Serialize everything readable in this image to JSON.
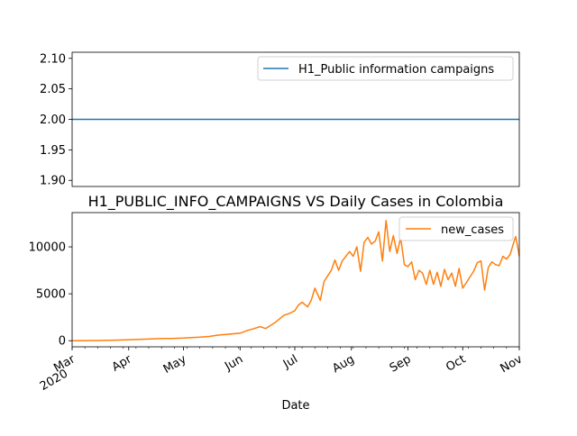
{
  "chart_data": [
    {
      "type": "line",
      "title": "",
      "xlabel": "",
      "ylabel": "",
      "ylim": [
        1.89,
        2.11
      ],
      "yticks": [
        1.9,
        1.95,
        2.0,
        2.05,
        2.1
      ],
      "ytick_labels": [
        "1.90",
        "1.95",
        "2.00",
        "2.05",
        "2.10"
      ],
      "legend_position": "top-right",
      "series": [
        {
          "name": "H1_Public information campaigns",
          "color": "#1f77b4",
          "x": [
            "2020-03-01",
            "2020-11-01"
          ],
          "values": [
            2,
            2
          ]
        }
      ]
    },
    {
      "type": "line",
      "title": "H1_PUBLIC_INFO_CAMPAIGNS VS Daily Cases in Colombia",
      "xlabel": "Date",
      "ylabel": "",
      "ylim": [
        -650,
        13650
      ],
      "yticks": [
        0,
        5000,
        10000
      ],
      "ytick_labels": [
        "0",
        "5000",
        "10000"
      ],
      "xlim": [
        "2020-03-01",
        "2020-11-01"
      ],
      "xticks": [
        {
          "date": "2020-03-01",
          "label": "Mar",
          "year": "2020"
        },
        {
          "date": "2020-04-01",
          "label": "Apr"
        },
        {
          "date": "2020-05-01",
          "label": "May"
        },
        {
          "date": "2020-06-01",
          "label": "Jun"
        },
        {
          "date": "2020-07-01",
          "label": "Jul"
        },
        {
          "date": "2020-08-01",
          "label": "Aug"
        },
        {
          "date": "2020-09-01",
          "label": "Sep"
        },
        {
          "date": "2020-10-01",
          "label": "Oct"
        },
        {
          "date": "2020-11-01",
          "label": "Nov"
        }
      ],
      "legend_position": "top-right",
      "series": [
        {
          "name": "new_cases",
          "color": "#ff7f0e",
          "x": [
            "2020-03-01",
            "2020-03-15",
            "2020-03-25",
            "2020-04-01",
            "2020-04-10",
            "2020-04-20",
            "2020-04-25",
            "2020-05-01",
            "2020-05-10",
            "2020-05-15",
            "2020-05-20",
            "2020-05-25",
            "2020-06-01",
            "2020-06-05",
            "2020-06-08",
            "2020-06-12",
            "2020-06-15",
            "2020-06-20",
            "2020-06-25",
            "2020-06-28",
            "2020-07-01",
            "2020-07-03",
            "2020-07-05",
            "2020-07-08",
            "2020-07-10",
            "2020-07-12",
            "2020-07-15",
            "2020-07-17",
            "2020-07-19",
            "2020-07-21",
            "2020-07-23",
            "2020-07-25",
            "2020-07-27",
            "2020-07-29",
            "2020-07-31",
            "2020-08-02",
            "2020-08-04",
            "2020-08-06",
            "2020-08-08",
            "2020-08-10",
            "2020-08-12",
            "2020-08-14",
            "2020-08-16",
            "2020-08-18",
            "2020-08-20",
            "2020-08-22",
            "2020-08-24",
            "2020-08-26",
            "2020-08-28",
            "2020-08-30",
            "2020-09-01",
            "2020-09-03",
            "2020-09-05",
            "2020-09-07",
            "2020-09-09",
            "2020-09-11",
            "2020-09-13",
            "2020-09-15",
            "2020-09-17",
            "2020-09-19",
            "2020-09-21",
            "2020-09-23",
            "2020-09-25",
            "2020-09-27",
            "2020-09-29",
            "2020-10-01",
            "2020-10-03",
            "2020-10-05",
            "2020-10-07",
            "2020-10-09",
            "2020-10-11",
            "2020-10-13",
            "2020-10-15",
            "2020-10-17",
            "2020-10-19",
            "2020-10-21",
            "2020-10-23",
            "2020-10-25",
            "2020-10-27",
            "2020-10-29",
            "2020-10-30",
            "2020-10-31",
            "2020-11-01"
          ],
          "values": [
            0,
            20,
            60,
            110,
            170,
            230,
            240,
            280,
            380,
            450,
            600,
            680,
            800,
            1100,
            1250,
            1500,
            1300,
            1900,
            2700,
            2900,
            3200,
            3800,
            4100,
            3600,
            4300,
            5600,
            4300,
            6300,
            6900,
            7500,
            8600,
            7500,
            8500,
            9000,
            9500,
            9000,
            10000,
            7400,
            10500,
            11000,
            10300,
            10600,
            11600,
            8500,
            12800,
            9500,
            11200,
            9300,
            11000,
            8100,
            7900,
            8400,
            6500,
            7500,
            7200,
            6000,
            7500,
            6000,
            7300,
            5800,
            7600,
            6500,
            7200,
            5800,
            7700,
            5600,
            6200,
            6800,
            7400,
            8300,
            8500,
            5400,
            7800,
            8400,
            8100,
            8000,
            9000,
            8700,
            9200,
            10500,
            11100,
            10100,
            9000
          ]
        }
      ]
    }
  ]
}
